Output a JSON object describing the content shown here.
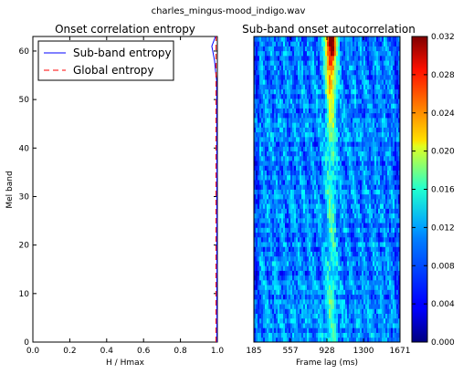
{
  "figure": {
    "suptitle": "charles_mingus-mood_indigo.wav"
  },
  "chart_data": [
    {
      "type": "line",
      "title": "Onset correlation entropy",
      "xlabel": "H / Hmax",
      "ylabel": "Mel band",
      "xlim": [
        0.0,
        1.0
      ],
      "ylim": [
        0,
        63
      ],
      "x_ticks": [
        "0.0",
        "0.2",
        "0.4",
        "0.6",
        "0.8",
        "1.0"
      ],
      "y_ticks": [
        "0",
        "10",
        "20",
        "30",
        "40",
        "50",
        "60"
      ],
      "legend": {
        "placement": "top-left",
        "entries": [
          "Sub-band entropy",
          "Global entropy"
        ]
      },
      "series": [
        {
          "name": "Sub-band entropy",
          "color": "#0000ff",
          "style": "solid",
          "points": [
            [
              0.997,
              0
            ],
            [
              0.998,
              5
            ],
            [
              0.997,
              10
            ],
            [
              0.998,
              15
            ],
            [
              0.997,
              20
            ],
            [
              0.998,
              25
            ],
            [
              0.997,
              30
            ],
            [
              0.998,
              35
            ],
            [
              0.997,
              40
            ],
            [
              0.997,
              45
            ],
            [
              0.997,
              50
            ],
            [
              0.996,
              54
            ],
            [
              0.99,
              56
            ],
            [
              0.985,
              58
            ],
            [
              0.975,
              60
            ],
            [
              0.97,
              61
            ],
            [
              0.98,
              62
            ],
            [
              0.99,
              63
            ]
          ]
        },
        {
          "name": "Global entropy",
          "color": "#ff0000",
          "style": "dashed",
          "x_constant": 0.993
        }
      ]
    },
    {
      "type": "heatmap",
      "title": "Sub-band onset autocorrelation",
      "xlabel": "Frame lag (ms)",
      "ylabel": "",
      "x_ticks": [
        "185",
        "557",
        "928",
        "1300",
        "1671"
      ],
      "colorbar": {
        "colormap": "jet",
        "range": [
          0.0,
          0.032
        ],
        "ticks": [
          "0.000",
          "0.004",
          "0.008",
          "0.012",
          "0.016",
          "0.020",
          "0.024",
          "0.028",
          "0.032"
        ]
      },
      "description_values": {
        "rows": 64,
        "peak_column_lag_ms": 970,
        "peak_value_top_rows": 0.032,
        "typical_background": 0.008
      }
    }
  ]
}
